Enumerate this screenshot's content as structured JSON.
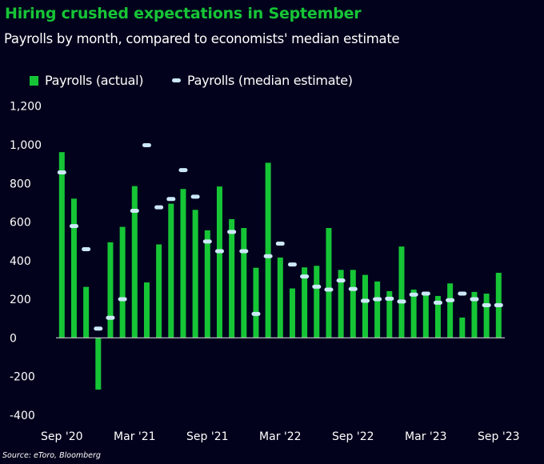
{
  "header": {
    "title": "Hiring crushed expectations in September",
    "subtitle": "Payrolls by month, compared to economists' median estimate"
  },
  "source": "Source: eToro, Bloomberg",
  "chart_data": {
    "type": "bar",
    "title": "Hiring crushed expectations in September",
    "subtitle": "Payrolls by month, compared to economists' median estimate",
    "legend_position": "top-left",
    "grid": false,
    "colors": {
      "background": "#02021c",
      "actual": "#16c536",
      "estimate": "#cce8f8"
    },
    "ylim": [
      -400,
      1200
    ],
    "yticks": [
      "1,200",
      "1,000",
      "800",
      "600",
      "400",
      "200",
      "0",
      "-200",
      "-400"
    ],
    "ytick_values": [
      1200,
      1000,
      800,
      600,
      400,
      200,
      0,
      -200,
      -400
    ],
    "categories": [
      "Sep '20",
      "Oct '20",
      "Nov '20",
      "Dec '20",
      "Jan '21",
      "Feb '21",
      "Mar '21",
      "Apr '21",
      "May '21",
      "Jun '21",
      "Jul '21",
      "Aug '21",
      "Sep '21",
      "Oct '21",
      "Nov '21",
      "Dec '21",
      "Jan '22",
      "Feb '22",
      "Mar '22",
      "Apr '22",
      "May '22",
      "Jun '22",
      "Jul '22",
      "Aug '22",
      "Sep '22",
      "Oct '22",
      "Nov '22",
      "Dec '22",
      "Jan '23",
      "Feb '23",
      "Mar '23",
      "Apr '23",
      "May '23",
      "Jun '23",
      "Jul '23",
      "Aug '23",
      "Sep '23"
    ],
    "xtick_labels": [
      "Sep '20",
      "Mar '21",
      "Sep '21",
      "Mar '22",
      "Sep '22",
      "Mar '23",
      "Sep '23"
    ],
    "xtick_indices": [
      0,
      6,
      12,
      18,
      24,
      30,
      36
    ],
    "series": [
      {
        "name": "Payrolls (actual)",
        "kind": "bar",
        "values": [
          962,
          721,
          264,
          -268,
          495,
          575,
          786,
          287,
          484,
          695,
          771,
          663,
          557,
          784,
          615,
          569,
          363,
          907,
          416,
          256,
          365,
          373,
          569,
          352,
          352,
          326,
          292,
          242,
          473,
          250,
          236,
          217,
          282,
          105,
          238,
          229,
          337
        ]
      },
      {
        "name": "Payrolls (median estimate)",
        "kind": "marker",
        "values": [
          857,
          579,
          459,
          48,
          104,
          200,
          658,
          998,
          676,
          719,
          869,
          731,
          499,
          449,
          549,
          449,
          124,
          423,
          488,
          380,
          318,
          265,
          250,
          297,
          253,
          192,
          200,
          203,
          188,
          224,
          229,
          182,
          195,
          229,
          200,
          169,
          169
        ]
      }
    ]
  }
}
